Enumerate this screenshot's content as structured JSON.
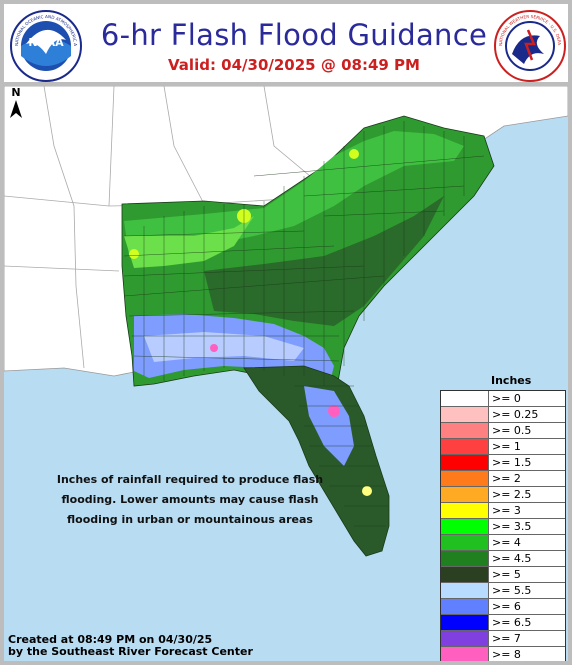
{
  "header": {
    "title": "6-hr Flash Flood Guidance",
    "valid": "Valid:  04/30/2025 @ 08:49 PM",
    "noaa_logo": "NOAA",
    "noaa_ring_text": "NATIONAL OCEANIC AND ATMOSPHERIC ADMINISTRATION · U.S. DEPARTMENT OF COMMERCE",
    "nws_ring_text": "NATIONAL WEATHER SERVICE · U.S. DEPARTMENT OF COMMERCE"
  },
  "map": {
    "north_label": "N",
    "note": "Inches of rainfall required to produce flash flooding. Lower amounts may cause flash flooding in urban or mountainous areas",
    "credit_line1": "Created at 08:49 PM on 04/30/25",
    "credit_line2": "by the Southeast River Forecast Center"
  },
  "legend": {
    "title": "Inches",
    "items": [
      {
        "label": ">= 0",
        "color": "#ffffff"
      },
      {
        "label": ">= 0.25",
        "color": "#ffc0c0"
      },
      {
        "label": ">= 0.5",
        "color": "#ff8080"
      },
      {
        "label": ">= 1",
        "color": "#ff4040"
      },
      {
        "label": ">= 1.5",
        "color": "#ff0000"
      },
      {
        "label": ">= 2",
        "color": "#ff7a1a"
      },
      {
        "label": ">= 2.5",
        "color": "#ffaa22"
      },
      {
        "label": ">= 3",
        "color": "#ffff00"
      },
      {
        "label": ">= 3.5",
        "color": "#00ff00"
      },
      {
        "label": ">= 4",
        "color": "#20c020"
      },
      {
        "label": ">= 4.5",
        "color": "#208020"
      },
      {
        "label": ">= 5",
        "color": "#2a4020"
      },
      {
        "label": ">= 5.5",
        "color": "#b8dcff"
      },
      {
        "label": ">= 6",
        "color": "#6080ff"
      },
      {
        "label": ">= 6.5",
        "color": "#0000ff"
      },
      {
        "label": ">= 7",
        "color": "#8040e0"
      },
      {
        "label": ">= 8",
        "color": "#ff60c0"
      }
    ]
  },
  "colors": {
    "ocean": "#b8dcf2",
    "land_outside": "#ffffff",
    "title": "#2a2a9a",
    "valid": "#cc2020"
  }
}
